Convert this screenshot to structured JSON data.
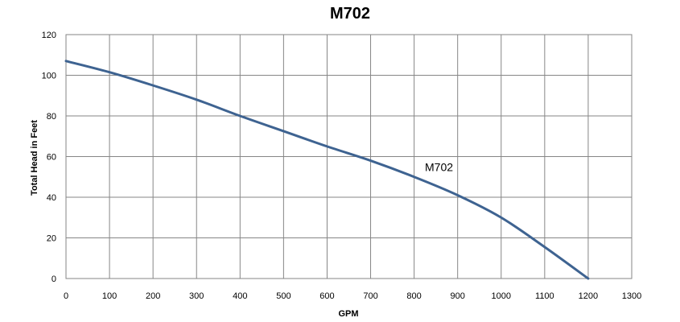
{
  "chart_data": {
    "type": "line",
    "title": "M702",
    "xlabel": "GPM",
    "ylabel": "Total Head in Feet",
    "xlim": [
      0,
      1300
    ],
    "ylim": [
      0,
      120
    ],
    "x_ticks": [
      "0",
      "100",
      "200",
      "300",
      "400",
      "500",
      "600",
      "700",
      "800",
      "900",
      "1000",
      "1100",
      "1200",
      "1300"
    ],
    "y_ticks": [
      "0",
      "20",
      "40",
      "60",
      "80",
      "100",
      "120"
    ],
    "grid": true,
    "legend": "none",
    "series": [
      {
        "name": "M702",
        "color": "#3E6391",
        "x": [
          0,
          100,
          200,
          300,
          400,
          500,
          600,
          700,
          800,
          900,
          1000,
          1100,
          1200
        ],
        "y": [
          107,
          101.5,
          95,
          88,
          80,
          72.5,
          65,
          58,
          50,
          41,
          30,
          15.5,
          0
        ]
      }
    ],
    "annotations": [
      {
        "text": "M702",
        "x": 810,
        "y": 52
      }
    ]
  }
}
